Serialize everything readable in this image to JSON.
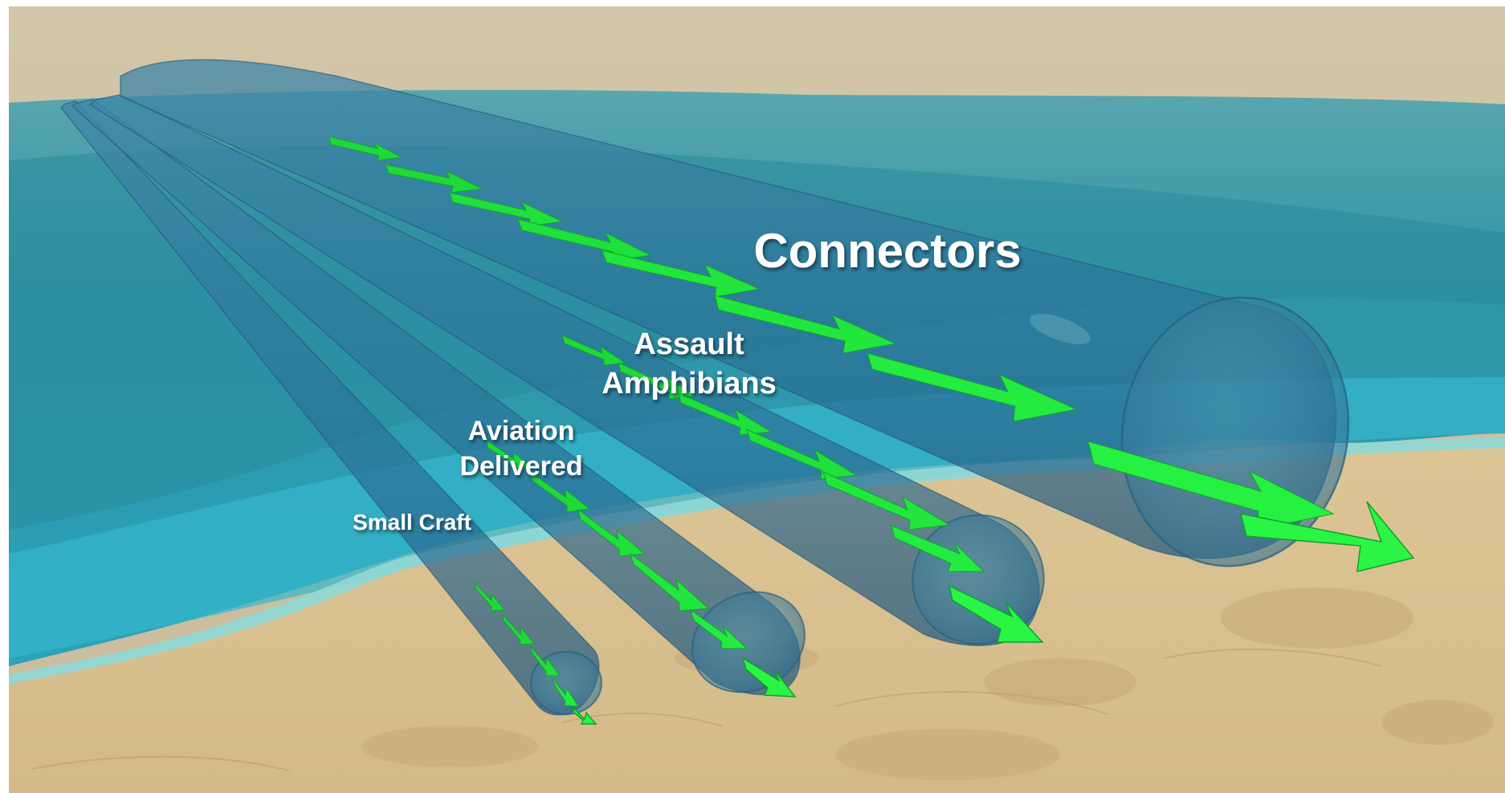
{
  "diagram": {
    "title": "Connectors",
    "tubes": [
      {
        "id": "connectors",
        "lines": [
          "Connectors"
        ]
      },
      {
        "id": "assault-amphibians",
        "lines": [
          "Assault",
          "Amphibians"
        ]
      },
      {
        "id": "aviation-delivered",
        "lines": [
          "Aviation",
          "Delivered"
        ]
      },
      {
        "id": "small-craft",
        "lines": [
          "Small Craft"
        ]
      }
    ]
  },
  "colors": {
    "sky": "#cdbf9f",
    "sea_deep": "#2a8fa0",
    "sea_shallow": "#33b3c8",
    "surf": "#7fd3d6",
    "sand": "#d9c193",
    "sand_dark": "#bfa271",
    "tube": "#2f6f96",
    "arrow": "#1fe83b",
    "arrow_dark": "#0f9a26",
    "label": "#ffffff"
  }
}
